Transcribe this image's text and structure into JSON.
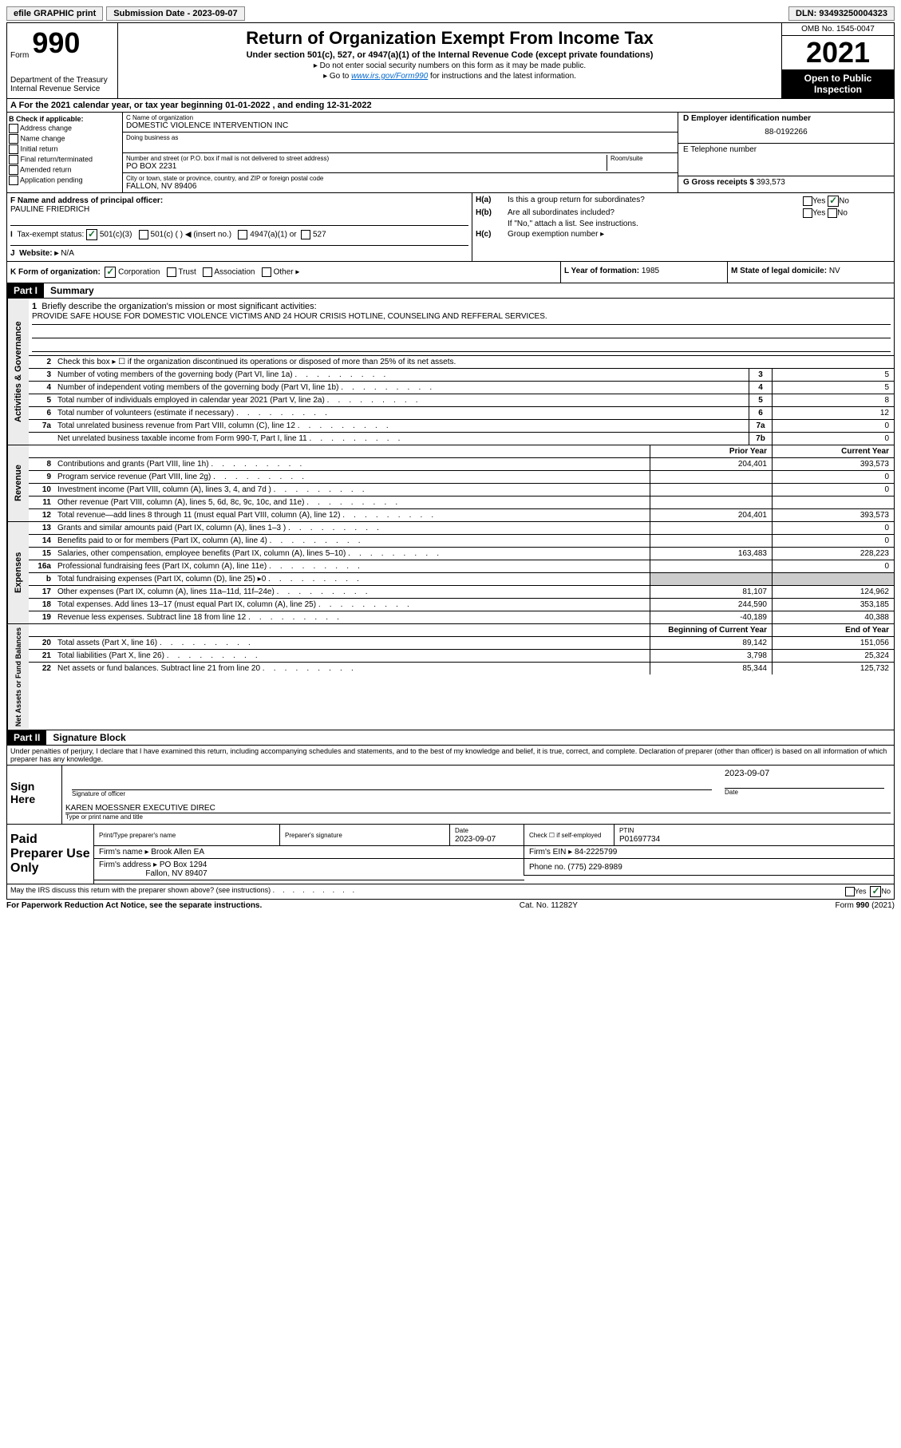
{
  "topbar": {
    "efile": "efile GRAPHIC print",
    "submission_label": "Submission Date - ",
    "submission_date": "2023-09-07",
    "dln_label": "DLN: ",
    "dln": "93493250004323"
  },
  "header": {
    "form_word": "Form",
    "form_num": "990",
    "dept": "Department of the Treasury",
    "irs": "Internal Revenue Service",
    "title": "Return of Organization Exempt From Income Tax",
    "sub": "Under section 501(c), 527, or 4947(a)(1) of the Internal Revenue Code (except private foundations)",
    "note1": "▸ Do not enter social security numbers on this form as it may be made public.",
    "note2_prefix": "▸ Go to ",
    "note2_link": "www.irs.gov/Form990",
    "note2_suffix": " for instructions and the latest information.",
    "omb": "OMB No. 1545-0047",
    "year": "2021",
    "open": "Open to Public Inspection"
  },
  "rowA": "A For the 2021 calendar year, or tax year beginning 01-01-2022   , and ending 12-31-2022",
  "colB": {
    "title": "B Check if applicable:",
    "items": [
      "Address change",
      "Name change",
      "Initial return",
      "Final return/terminated",
      "Amended return",
      "Application pending"
    ]
  },
  "colC": {
    "name_label": "C Name of organization",
    "name": "DOMESTIC VIOLENCE INTERVENTION INC",
    "dba_label": "Doing business as",
    "addr_label": "Number and street (or P.O. box if mail is not delivered to street address)",
    "room_label": "Room/suite",
    "addr": "PO BOX 2231",
    "city_label": "City or town, state or province, country, and ZIP or foreign postal code",
    "city": "FALLON, NV  89406"
  },
  "colD": {
    "ein_label": "D Employer identification number",
    "ein": "88-0192266",
    "phone_label": "E Telephone number",
    "gross_label": "G Gross receipts $ ",
    "gross": "393,573"
  },
  "rowF": {
    "label": "F Name and address of principal officer:",
    "name": "PAULINE FRIEDRICH"
  },
  "rowH": {
    "ha_lbl": "H(a)",
    "ha_txt": "Is this a group return for subordinates?",
    "hb_lbl": "H(b)",
    "hb_txt": "Are all subordinates included?",
    "hb_note": "If \"No,\" attach a list. See instructions.",
    "hc_lbl": "H(c)",
    "hc_txt": "Group exemption number ▸",
    "yes": "Yes",
    "no": "No"
  },
  "rowI": {
    "label": "Tax-exempt status:",
    "opt1": "501(c)(3)",
    "opt2": "501(c) (   ) ◀ (insert no.)",
    "opt3": "4947(a)(1) or",
    "opt4": "527"
  },
  "rowJ": {
    "label": "Website: ▸",
    "value": "N/A"
  },
  "rowK": {
    "label": "K Form of organization:",
    "opts": [
      "Corporation",
      "Trust",
      "Association",
      "Other ▸"
    ],
    "L_label": "L Year of formation: ",
    "L_val": "1985",
    "M_label": "M State of legal domicile: ",
    "M_val": "NV"
  },
  "part1": {
    "header": "Part I",
    "title": "Summary"
  },
  "summary": {
    "line1_label": "Briefly describe the organization's mission or most significant activities:",
    "line1_text": "PROVIDE SAFE HOUSE FOR DOMESTIC VIOLENCE VICTIMS AND 24 HOUR CRISIS HOTLINE, COUNSELING AND REFFERAL SERVICES.",
    "line2": "Check this box ▸ ☐ if the organization discontinued its operations or disposed of more than 25% of its net assets.",
    "rows_gov": [
      {
        "n": "3",
        "d": "Number of voting members of the governing body (Part VI, line 1a)",
        "box": "3",
        "v": "5"
      },
      {
        "n": "4",
        "d": "Number of independent voting members of the governing body (Part VI, line 1b)",
        "box": "4",
        "v": "5"
      },
      {
        "n": "5",
        "d": "Total number of individuals employed in calendar year 2021 (Part V, line 2a)",
        "box": "5",
        "v": "8"
      },
      {
        "n": "6",
        "d": "Total number of volunteers (estimate if necessary)",
        "box": "6",
        "v": "12"
      },
      {
        "n": "7a",
        "d": "Total unrelated business revenue from Part VIII, column (C), line 12",
        "box": "7a",
        "v": "0"
      },
      {
        "n": "",
        "d": "Net unrelated business taxable income from Form 990-T, Part I, line 11",
        "box": "7b",
        "v": "0"
      }
    ],
    "prior_year": "Prior Year",
    "current_year": "Current Year",
    "rows_rev": [
      {
        "n": "8",
        "d": "Contributions and grants (Part VIII, line 1h)",
        "p": "204,401",
        "c": "393,573"
      },
      {
        "n": "9",
        "d": "Program service revenue (Part VIII, line 2g)",
        "p": "",
        "c": "0"
      },
      {
        "n": "10",
        "d": "Investment income (Part VIII, column (A), lines 3, 4, and 7d )",
        "p": "",
        "c": "0"
      },
      {
        "n": "11",
        "d": "Other revenue (Part VIII, column (A), lines 5, 6d, 8c, 9c, 10c, and 11e)",
        "p": "",
        "c": ""
      },
      {
        "n": "12",
        "d": "Total revenue—add lines 8 through 11 (must equal Part VIII, column (A), line 12)",
        "p": "204,401",
        "c": "393,573"
      }
    ],
    "rows_exp": [
      {
        "n": "13",
        "d": "Grants and similar amounts paid (Part IX, column (A), lines 1–3 )",
        "p": "",
        "c": "0"
      },
      {
        "n": "14",
        "d": "Benefits paid to or for members (Part IX, column (A), line 4)",
        "p": "",
        "c": "0"
      },
      {
        "n": "15",
        "d": "Salaries, other compensation, employee benefits (Part IX, column (A), lines 5–10)",
        "p": "163,483",
        "c": "228,223"
      },
      {
        "n": "16a",
        "d": "Professional fundraising fees (Part IX, column (A), line 11e)",
        "p": "",
        "c": "0"
      },
      {
        "n": "b",
        "d": "Total fundraising expenses (Part IX, column (D), line 25) ▸0",
        "p": "—",
        "c": "—"
      },
      {
        "n": "17",
        "d": "Other expenses (Part IX, column (A), lines 11a–11d, 11f–24e)",
        "p": "81,107",
        "c": "124,962"
      },
      {
        "n": "18",
        "d": "Total expenses. Add lines 13–17 (must equal Part IX, column (A), line 25)",
        "p": "244,590",
        "c": "353,185"
      },
      {
        "n": "19",
        "d": "Revenue less expenses. Subtract line 18 from line 12",
        "p": "-40,189",
        "c": "40,388"
      }
    ],
    "boy": "Beginning of Current Year",
    "eoy": "End of Year",
    "rows_net": [
      {
        "n": "20",
        "d": "Total assets (Part X, line 16)",
        "p": "89,142",
        "c": "151,056"
      },
      {
        "n": "21",
        "d": "Total liabilities (Part X, line 26)",
        "p": "3,798",
        "c": "25,324"
      },
      {
        "n": "22",
        "d": "Net assets or fund balances. Subtract line 21 from line 20",
        "p": "85,344",
        "c": "125,732"
      }
    ]
  },
  "vert_labels": {
    "gov": "Activities & Governance",
    "rev": "Revenue",
    "exp": "Expenses",
    "net": "Net Assets or Fund Balances"
  },
  "part2": {
    "header": "Part II",
    "title": "Signature Block",
    "declaration": "Under penalties of perjury, I declare that I have examined this return, including accompanying schedules and statements, and to the best of my knowledge and belief, it is true, correct, and complete. Declaration of preparer (other than officer) is based on all information of which preparer has any knowledge."
  },
  "sign": {
    "label": "Sign Here",
    "sig_label": "Signature of officer",
    "date_label": "Date",
    "date": "2023-09-07",
    "name_label": "Type or print name and title",
    "name": "KAREN MOESSNER EXECUTIVE DIREC"
  },
  "preparer": {
    "label": "Paid Preparer Use Only",
    "col1": "Print/Type preparer's name",
    "col2": "Preparer's signature",
    "col3_label": "Date",
    "col3": "2023-09-07",
    "col4": "Check ☐ if self-employed",
    "col5_label": "PTIN",
    "col5": "P01697734",
    "firm_name_label": "Firm's name    ▸ ",
    "firm_name": "Brook Allen EA",
    "firm_ein_label": "Firm's EIN ▸ ",
    "firm_ein": "84-2225799",
    "firm_addr_label": "Firm's address ▸ ",
    "firm_addr1": "PO Box 1294",
    "firm_addr2": "Fallon, NV  89407",
    "phone_label": "Phone no. ",
    "phone": "(775) 229-8989",
    "discuss": "May the IRS discuss this return with the preparer shown above? (see instructions)"
  },
  "footer": {
    "left": "For Paperwork Reduction Act Notice, see the separate instructions.",
    "mid": "Cat. No. 11282Y",
    "right": "Form 990 (2021)"
  }
}
